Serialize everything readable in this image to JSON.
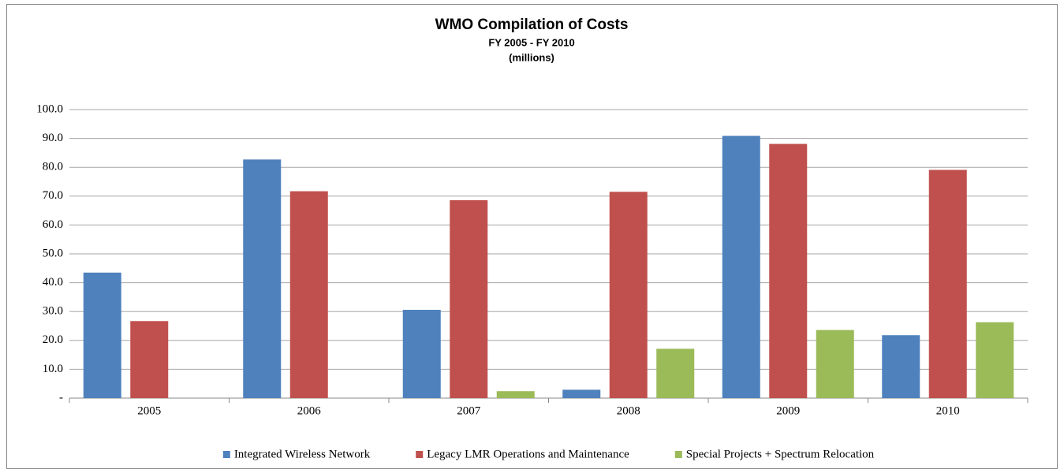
{
  "chart_data": {
    "type": "bar",
    "title": "WMO Compilation of Costs",
    "subtitle": "FY 2005 - FY 2010",
    "units": "(millions)",
    "categories": [
      "2005",
      "2006",
      "2007",
      "2008",
      "2009",
      "2010"
    ],
    "series": [
      {
        "name": "Integrated Wireless Network",
        "color": "#4f81bd",
        "values": [
          43.5,
          82.7,
          30.6,
          2.9,
          90.9,
          21.8
        ]
      },
      {
        "name": "Legacy LMR Operations and Maintenance",
        "color": "#c0504d",
        "values": [
          26.7,
          71.7,
          68.6,
          71.5,
          88.1,
          79.1
        ]
      },
      {
        "name": "Special Projects + Spectrum Relocation",
        "color": "#9bbb59",
        "values": [
          0,
          0,
          2.4,
          17.1,
          23.6,
          26.3
        ]
      }
    ],
    "ylim": [
      0,
      100
    ],
    "yticks": [
      {
        "value": 0,
        "label": "-"
      },
      {
        "value": 10,
        "label": "10.0"
      },
      {
        "value": 20,
        "label": "20.0"
      },
      {
        "value": 30,
        "label": "30.0"
      },
      {
        "value": 40,
        "label": "40.0"
      },
      {
        "value": 50,
        "label": "50.0"
      },
      {
        "value": 60,
        "label": "60.0"
      },
      {
        "value": 70,
        "label": "70.0"
      },
      {
        "value": 80,
        "label": "80.0"
      },
      {
        "value": 90,
        "label": "90.0"
      },
      {
        "value": 100,
        "label": "100.0"
      }
    ],
    "grid": true,
    "legend": "bottom"
  }
}
